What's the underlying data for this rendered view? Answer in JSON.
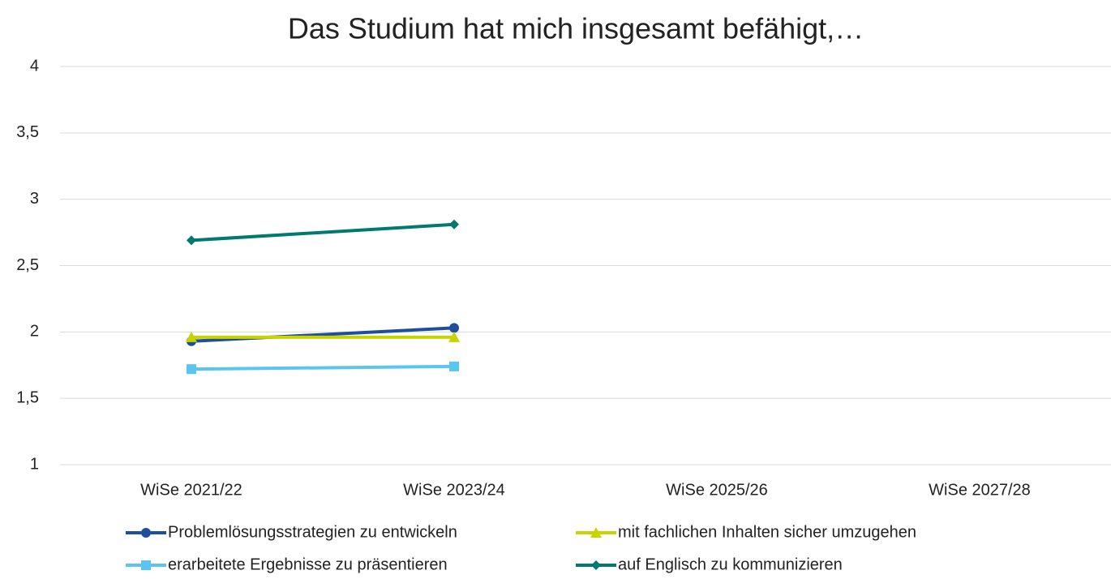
{
  "chart_data": {
    "type": "line",
    "title": "Das Studium hat mich insgesamt befähigt,…",
    "categories": [
      "WiSe 2021/22",
      "WiSe 2023/24",
      "WiSe 2025/26",
      "WiSe 2027/28"
    ],
    "series": [
      {
        "name": "Problemlösungsstrategien zu entwickeln",
        "color": "#1f4e9c",
        "marker": "circle",
        "values": [
          1.93,
          2.03,
          null,
          null
        ]
      },
      {
        "name": "mit fachlichen Inhalten sicher umzugehen",
        "color": "#c8d400",
        "marker": "triangle",
        "values": [
          1.96,
          1.96,
          null,
          null
        ]
      },
      {
        "name": "erarbeitete Ergebnisse zu präsentieren",
        "color": "#5bc5f2",
        "marker": "square",
        "values": [
          1.72,
          1.74,
          null,
          null
        ]
      },
      {
        "name": "auf Englisch zu kommunizieren",
        "color": "#007a6e",
        "marker": "diamond",
        "values": [
          2.69,
          2.81,
          null,
          null
        ]
      }
    ],
    "ylim": [
      1,
      4
    ],
    "yticks": [
      1,
      {
        "value": 1.5,
        "label": "1,5"
      },
      2,
      {
        "value": 2.5,
        "label": "2,5"
      },
      3,
      {
        "value": 3.5,
        "label": "3,5"
      },
      4
    ],
    "grid": true,
    "legend": "bottom"
  }
}
